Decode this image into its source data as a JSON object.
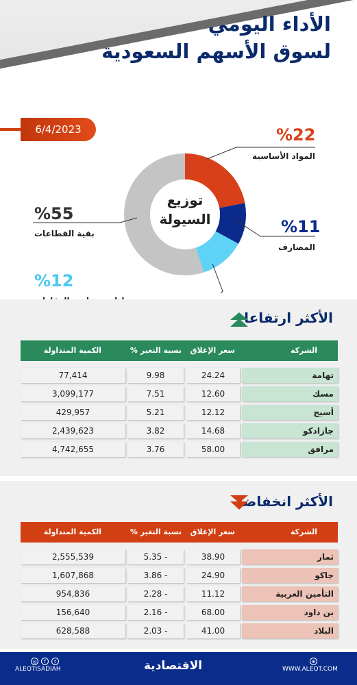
{
  "header": {
    "title_line1": "الأداء اليومي",
    "title_line2": "لسوق الأسهم السعودية"
  },
  "date": "6/4/2023",
  "donut": {
    "center_label_line1": "توزيع",
    "center_label_line2": "السيولة",
    "segments": [
      {
        "pct_text": "%22",
        "label": "المواد الأساسية",
        "value": 22,
        "color": "#d8401a",
        "pct_color": "#d8401a"
      },
      {
        "pct_text": "%11",
        "label": "المصارف",
        "value": 11,
        "color": "#0a2a8c",
        "pct_color": "#0a2a8c"
      },
      {
        "pct_text": "%12",
        "label": "إدارة وتطوير العقارات",
        "value": 12,
        "color": "#5fd3f5",
        "pct_color": "#4cc9f0"
      },
      {
        "pct_text": "%55",
        "label": "بقية القطاعات",
        "value": 55,
        "color": "#c4c4c4",
        "pct_color": "#333333"
      }
    ]
  },
  "gainers": {
    "title": "الأكثر ارتفاعا",
    "header_color": "#2a8a5c",
    "name_bg": "#c8e4d3",
    "columns": [
      "الشركة",
      "سعر الإغلاق",
      "نسبة التغير %",
      "الكمية المتداولة"
    ],
    "rows": [
      {
        "name": "تهامة",
        "close": "24.24",
        "chg": "9.98",
        "vol": "77,414"
      },
      {
        "name": "مسك",
        "close": "12.60",
        "chg": "7.51",
        "vol": "3,099,177"
      },
      {
        "name": "أسيج",
        "close": "12.12",
        "chg": "5.21",
        "vol": "429,957"
      },
      {
        "name": "جازادكو",
        "close": "14.68",
        "chg": "3.82",
        "vol": "2,439,623"
      },
      {
        "name": "مرافق",
        "close": "58.00",
        "chg": "3.76",
        "vol": "4,742,655"
      }
    ]
  },
  "losers": {
    "title": "الأكثر انخفاضا",
    "header_color": "#d13f12",
    "name_bg": "#ecc3b6",
    "columns": [
      "الشركة",
      "سعر الإغلاق",
      "نسبة التغير %",
      "الكمية المتداولة"
    ],
    "rows": [
      {
        "name": "ثمار",
        "close": "38.90",
        "chg": "5.35 -",
        "vol": "2,555,539"
      },
      {
        "name": "جاكو",
        "close": "24.90",
        "chg": "3.86 -",
        "vol": "1,607,868"
      },
      {
        "name": "التأمين العربية",
        "close": "11.12",
        "chg": "2.28 -",
        "vol": "954,836"
      },
      {
        "name": "بن داود",
        "close": "68.00",
        "chg": "2.16 -",
        "vol": "156,640"
      },
      {
        "name": "البلاد",
        "close": "41.00",
        "chg": "2.03 -",
        "vol": "628,588"
      }
    ]
  },
  "footer": {
    "social_handle": "ALEQTISADIAH",
    "logo": "الاقتصادية",
    "website": "WWW.ALEQT.COM"
  }
}
